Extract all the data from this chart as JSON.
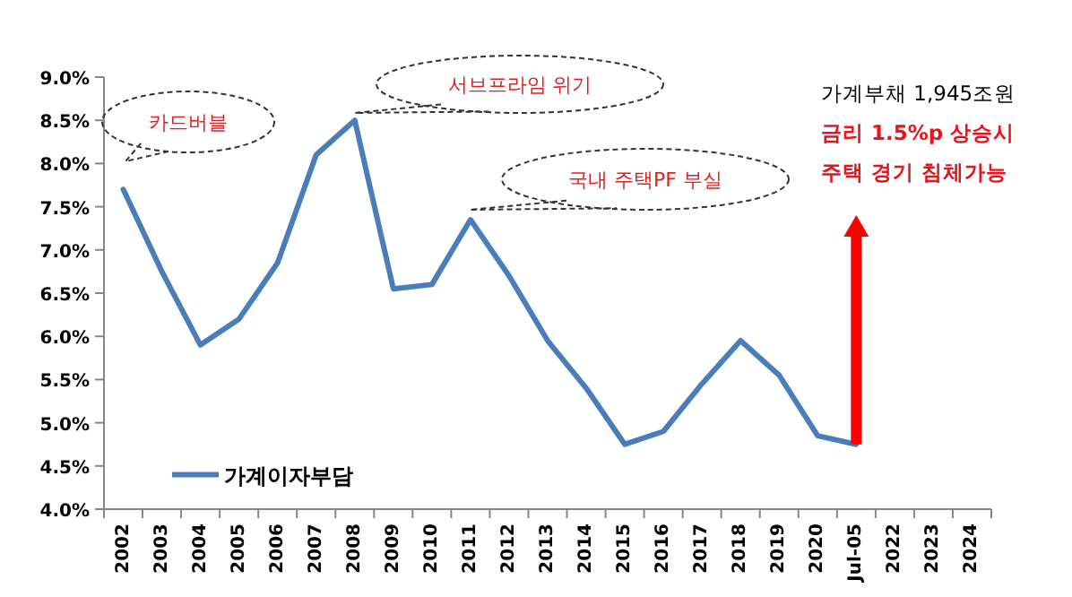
{
  "chart_data": {
    "type": "line",
    "categories": [
      "2002",
      "2003",
      "2004",
      "2005",
      "2006",
      "2007",
      "2008",
      "2009",
      "2010",
      "2011",
      "2012",
      "2013",
      "2014",
      "2015",
      "2016",
      "2017",
      "2018",
      "2019",
      "2020",
      "Jul-05",
      "2022",
      "2023",
      "2024"
    ],
    "series": [
      {
        "name": "가계이자부담",
        "color": "#4a7ebb",
        "values": [
          7.7,
          6.75,
          5.9,
          6.2,
          6.85,
          8.1,
          8.5,
          6.55,
          6.6,
          7.35,
          6.7,
          5.95,
          5.4,
          4.75,
          4.9,
          5.45,
          5.95,
          5.55,
          4.85,
          4.75,
          null,
          null,
          null
        ]
      }
    ],
    "ylim": [
      4.0,
      9.0
    ],
    "yticks": [
      {
        "value": 4.0,
        "label": "4.0%"
      },
      {
        "value": 4.5,
        "label": "4.5%"
      },
      {
        "value": 5.0,
        "label": "5.0%"
      },
      {
        "value": 5.5,
        "label": "5.5%"
      },
      {
        "value": 6.0,
        "label": "6.0%"
      },
      {
        "value": 6.5,
        "label": "6.5%"
      },
      {
        "value": 7.0,
        "label": "7.0%"
      },
      {
        "value": 7.5,
        "label": "7.5%"
      },
      {
        "value": 8.0,
        "label": "8.0%"
      },
      {
        "value": 8.5,
        "label": "8.5%"
      },
      {
        "value": 9.0,
        "label": "9.0%"
      }
    ],
    "annotations": [
      "카드버블",
      "서브프라임 위기",
      "국내 주택PF 부실",
      "가계부채 1,945조원",
      "금리 1.5%p 상승시",
      "주택 경기 침체가능"
    ],
    "legend": "bottom left",
    "grid": false,
    "marker": "none",
    "line_style": "solid"
  }
}
